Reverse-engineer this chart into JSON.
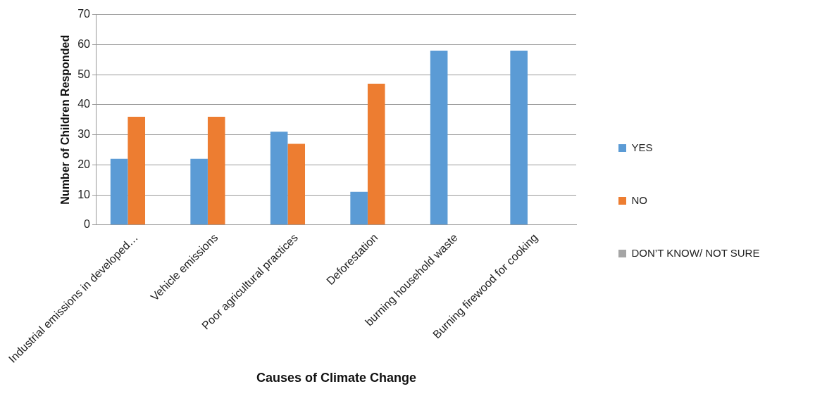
{
  "chart_data": {
    "type": "bar",
    "xlabel": "Causes of Climate Change",
    "ylabel": "Number of Children Responded",
    "categories": [
      "Industrial emissions in developed…",
      "Vehicle emissions",
      "Poor agricultural practices",
      "Deforestation",
      "burning household waste",
      "Burning firewood for cooking"
    ],
    "series": [
      {
        "name": "YES",
        "color": "#5b9bd5",
        "values": [
          22,
          22,
          31,
          11,
          58,
          58
        ]
      },
      {
        "name": "NO",
        "color": "#ed7d31",
        "values": [
          36,
          36,
          27,
          47,
          0,
          0
        ]
      },
      {
        "name": "DON’T KNOW/ NOT SURE",
        "color": "#a5a5a5",
        "values": [
          0,
          0,
          0,
          0,
          0,
          0
        ]
      }
    ],
    "ylim": [
      0,
      70
    ],
    "yticks": [
      0,
      10,
      20,
      30,
      40,
      50,
      60,
      70
    ],
    "grid": "y",
    "legend": "right"
  }
}
